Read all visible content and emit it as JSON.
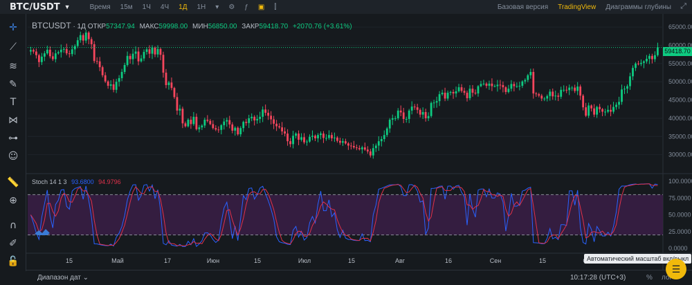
{
  "topbar": {
    "symbol": "BTC/USDT",
    "timeframes": [
      {
        "label": "Время",
        "active": false
      },
      {
        "label": "15м",
        "active": false
      },
      {
        "label": "1Ч",
        "active": false
      },
      {
        "label": "4Ч",
        "active": false
      },
      {
        "label": "1Д",
        "active": true
      },
      {
        "label": "1Н",
        "active": false
      }
    ],
    "views": [
      {
        "label": "Базовая версия",
        "active": false
      },
      {
        "label": "TradingView",
        "active": true
      },
      {
        "label": "Диаграммы глубины",
        "active": false
      }
    ]
  },
  "legend": {
    "pair": "BTCUSDT",
    "interval": "· 1Д",
    "open_label": "ОТКР",
    "open": "57347.94",
    "high_label": "МАКС",
    "high": "59998.00",
    "low_label": "МИН",
    "low": "56850.00",
    "close_label": "ЗАКР",
    "close": "59418.70",
    "change": "+2070.76 (+3.61%)"
  },
  "stoch": {
    "label": "Stoch 14 1 3",
    "k": "93.6800",
    "d": "94.9796"
  },
  "last_price": "59418.70",
  "tooltip": "Автоматический масштаб вкл/выкл",
  "bottombar": {
    "range_label": "Диапазон дат",
    "clock": "10:17:28 (UTC+3)",
    "percent": "%",
    "log": "лог",
    "auto": "авто"
  },
  "colors": {
    "up": "#0ecb81",
    "down": "#f6465d",
    "accent": "#f0b90b",
    "stoch_k": "#2962ff",
    "stoch_d": "#e0314b"
  },
  "chart_data": {
    "type": "candlestick",
    "price_axis": {
      "min": 25000,
      "max": 67500,
      "ticks": [
        65000,
        60000,
        55000,
        50000,
        45000,
        40000,
        35000,
        30000
      ]
    },
    "stoch_axis": {
      "min": 0,
      "max": 100,
      "ticks": [
        100,
        75,
        50,
        25,
        0
      ],
      "bands": [
        20,
        80
      ]
    },
    "x_ticks": [
      "15",
      "Май",
      "17",
      "Июн",
      "15",
      "Июл",
      "15",
      "Авг",
      "16",
      "Сен",
      "15",
      "Окт"
    ],
    "closes": [
      58700,
      58300,
      57300,
      55400,
      56900,
      57800,
      58800,
      57000,
      56200,
      57800,
      58100,
      58800,
      59000,
      57800,
      57600,
      58900,
      59800,
      61400,
      62800,
      61300,
      63500,
      61700,
      60300,
      55700,
      55600,
      54000,
      51800,
      50100,
      48900,
      49300,
      47800,
      50000,
      51000,
      52700,
      54600,
      57100,
      56200,
      57700,
      58300,
      55600,
      56400,
      58200,
      58900,
      57700,
      59400,
      57500,
      59000,
      57400,
      52500,
      49100,
      49800,
      48300,
      45800,
      42100,
      42600,
      38600,
      37800,
      39600,
      38400,
      40400,
      37000,
      37500,
      38000,
      39600,
      39300,
      38400,
      37300,
      36900,
      36800,
      38100,
      39100,
      39500,
      38300,
      36600,
      37400,
      35600,
      37300,
      39000,
      38700,
      40000,
      40400,
      39400,
      39800,
      40400,
      42400,
      41500,
      40700,
      39700,
      38500,
      37800,
      37500,
      36400,
      35800,
      33700,
      32900,
      35200,
      35800,
      34100,
      34800,
      33400,
      33600,
      34900,
      35200,
      34500,
      35400,
      35800,
      34600,
      34600,
      35400,
      34500,
      34700,
      33800,
      33300,
      33700,
      33100,
      32500,
      32400,
      32000,
      31800,
      31500,
      32000,
      31400,
      30900,
      29800,
      31800,
      32500,
      33700,
      34300,
      35400,
      37200,
      39600,
      40000,
      40000,
      42100,
      41600,
      39800,
      39800,
      42100,
      43200,
      43000,
      42300,
      41000,
      41700,
      40000,
      40600,
      44200,
      44300,
      44700,
      46600,
      47000,
      45400,
      47000,
      47200,
      46800,
      47400,
      48500,
      47500,
      47000,
      45500,
      48100,
      47000,
      46800,
      48800,
      49400,
      49500,
      48900,
      49500,
      48800,
      48800,
      49200,
      49100,
      48500,
      47200,
      48100,
      49400,
      48800,
      48800,
      48900,
      50100,
      50500,
      51800,
      52700,
      46800,
      46600,
      46200,
      45400,
      45400,
      46100,
      47300,
      46000,
      46200,
      45900,
      47800,
      47800,
      47700,
      48400,
      48400,
      47500,
      48700,
      46200,
      43000,
      40700,
      43500,
      42700,
      41000,
      43100,
      42500,
      41800,
      41800,
      42300,
      41800,
      43100,
      43700,
      44500,
      47900,
      48100,
      48800,
      51500,
      53800,
      55000,
      54900,
      55200,
      55600,
      56300,
      57100,
      56200,
      57300,
      59418
    ]
  }
}
